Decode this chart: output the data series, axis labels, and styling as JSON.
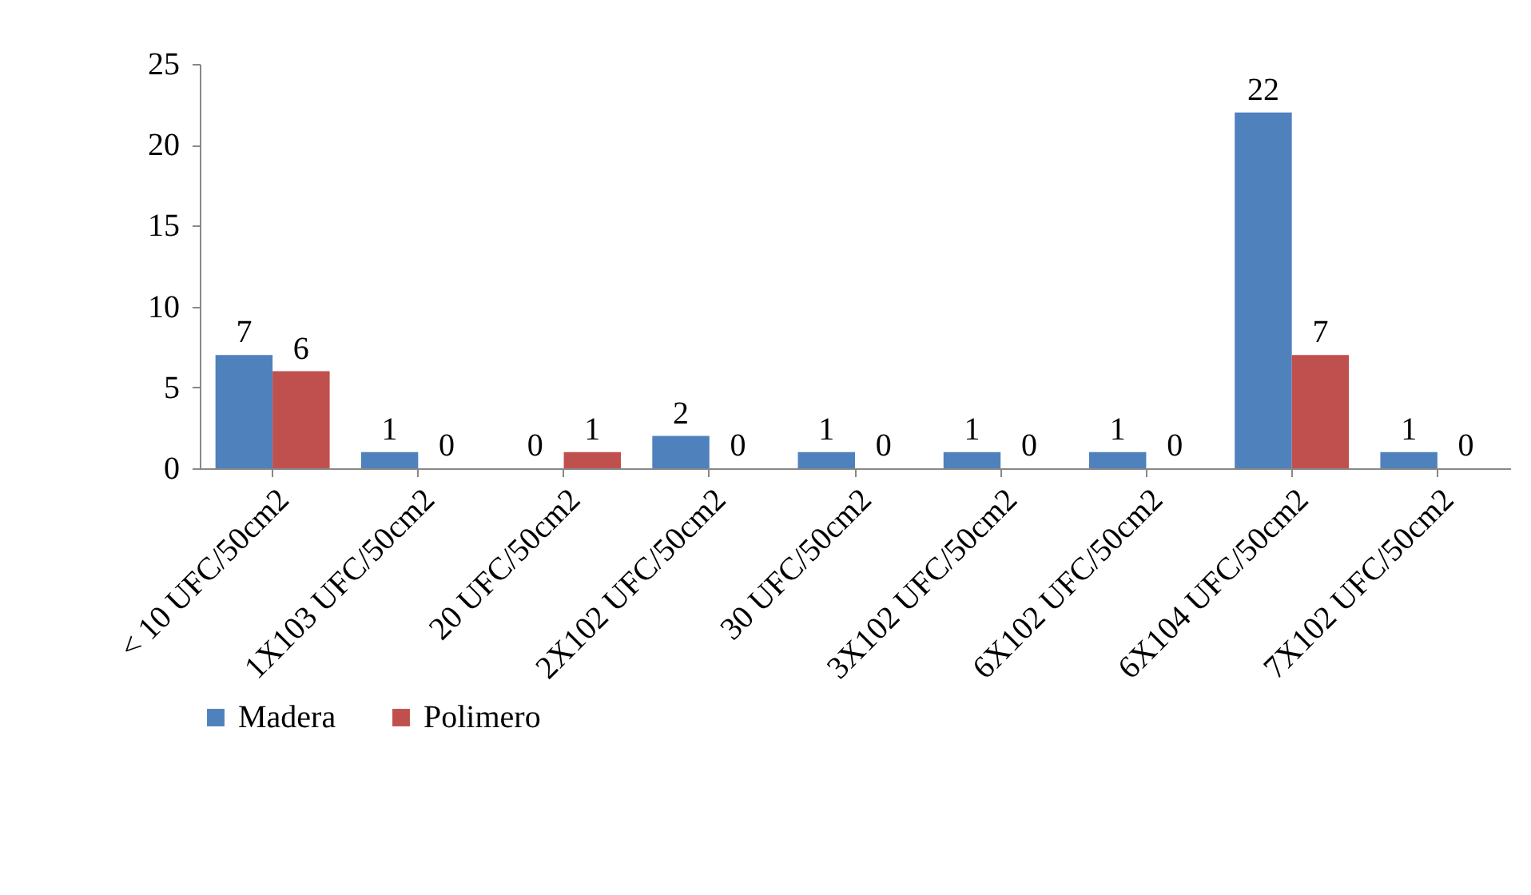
{
  "chart_data": {
    "type": "bar",
    "categories": [
      "< 10 UFC/50cm2",
      "1X103 UFC/50cm2",
      "20 UFC/50cm2",
      "2X102 UFC/50cm2",
      "30 UFC/50cm2",
      "3X102 UFC/50cm2",
      "6X102 UFC/50cm2",
      "6X104 UFC/50cm2",
      "7X102 UFC/50cm2"
    ],
    "series": [
      {
        "name": "Madera",
        "color": "#4f81bd",
        "values": [
          7,
          1,
          0,
          2,
          1,
          1,
          1,
          22,
          1
        ]
      },
      {
        "name": "Polimero",
        "color": "#c0504d",
        "values": [
          6,
          0,
          1,
          0,
          0,
          0,
          0,
          7,
          0
        ]
      }
    ],
    "ylim": [
      0,
      25
    ],
    "yticks": [
      0,
      5,
      10,
      15,
      20,
      25
    ],
    "grid": false,
    "legend": "bottom",
    "data_labels": true
  }
}
